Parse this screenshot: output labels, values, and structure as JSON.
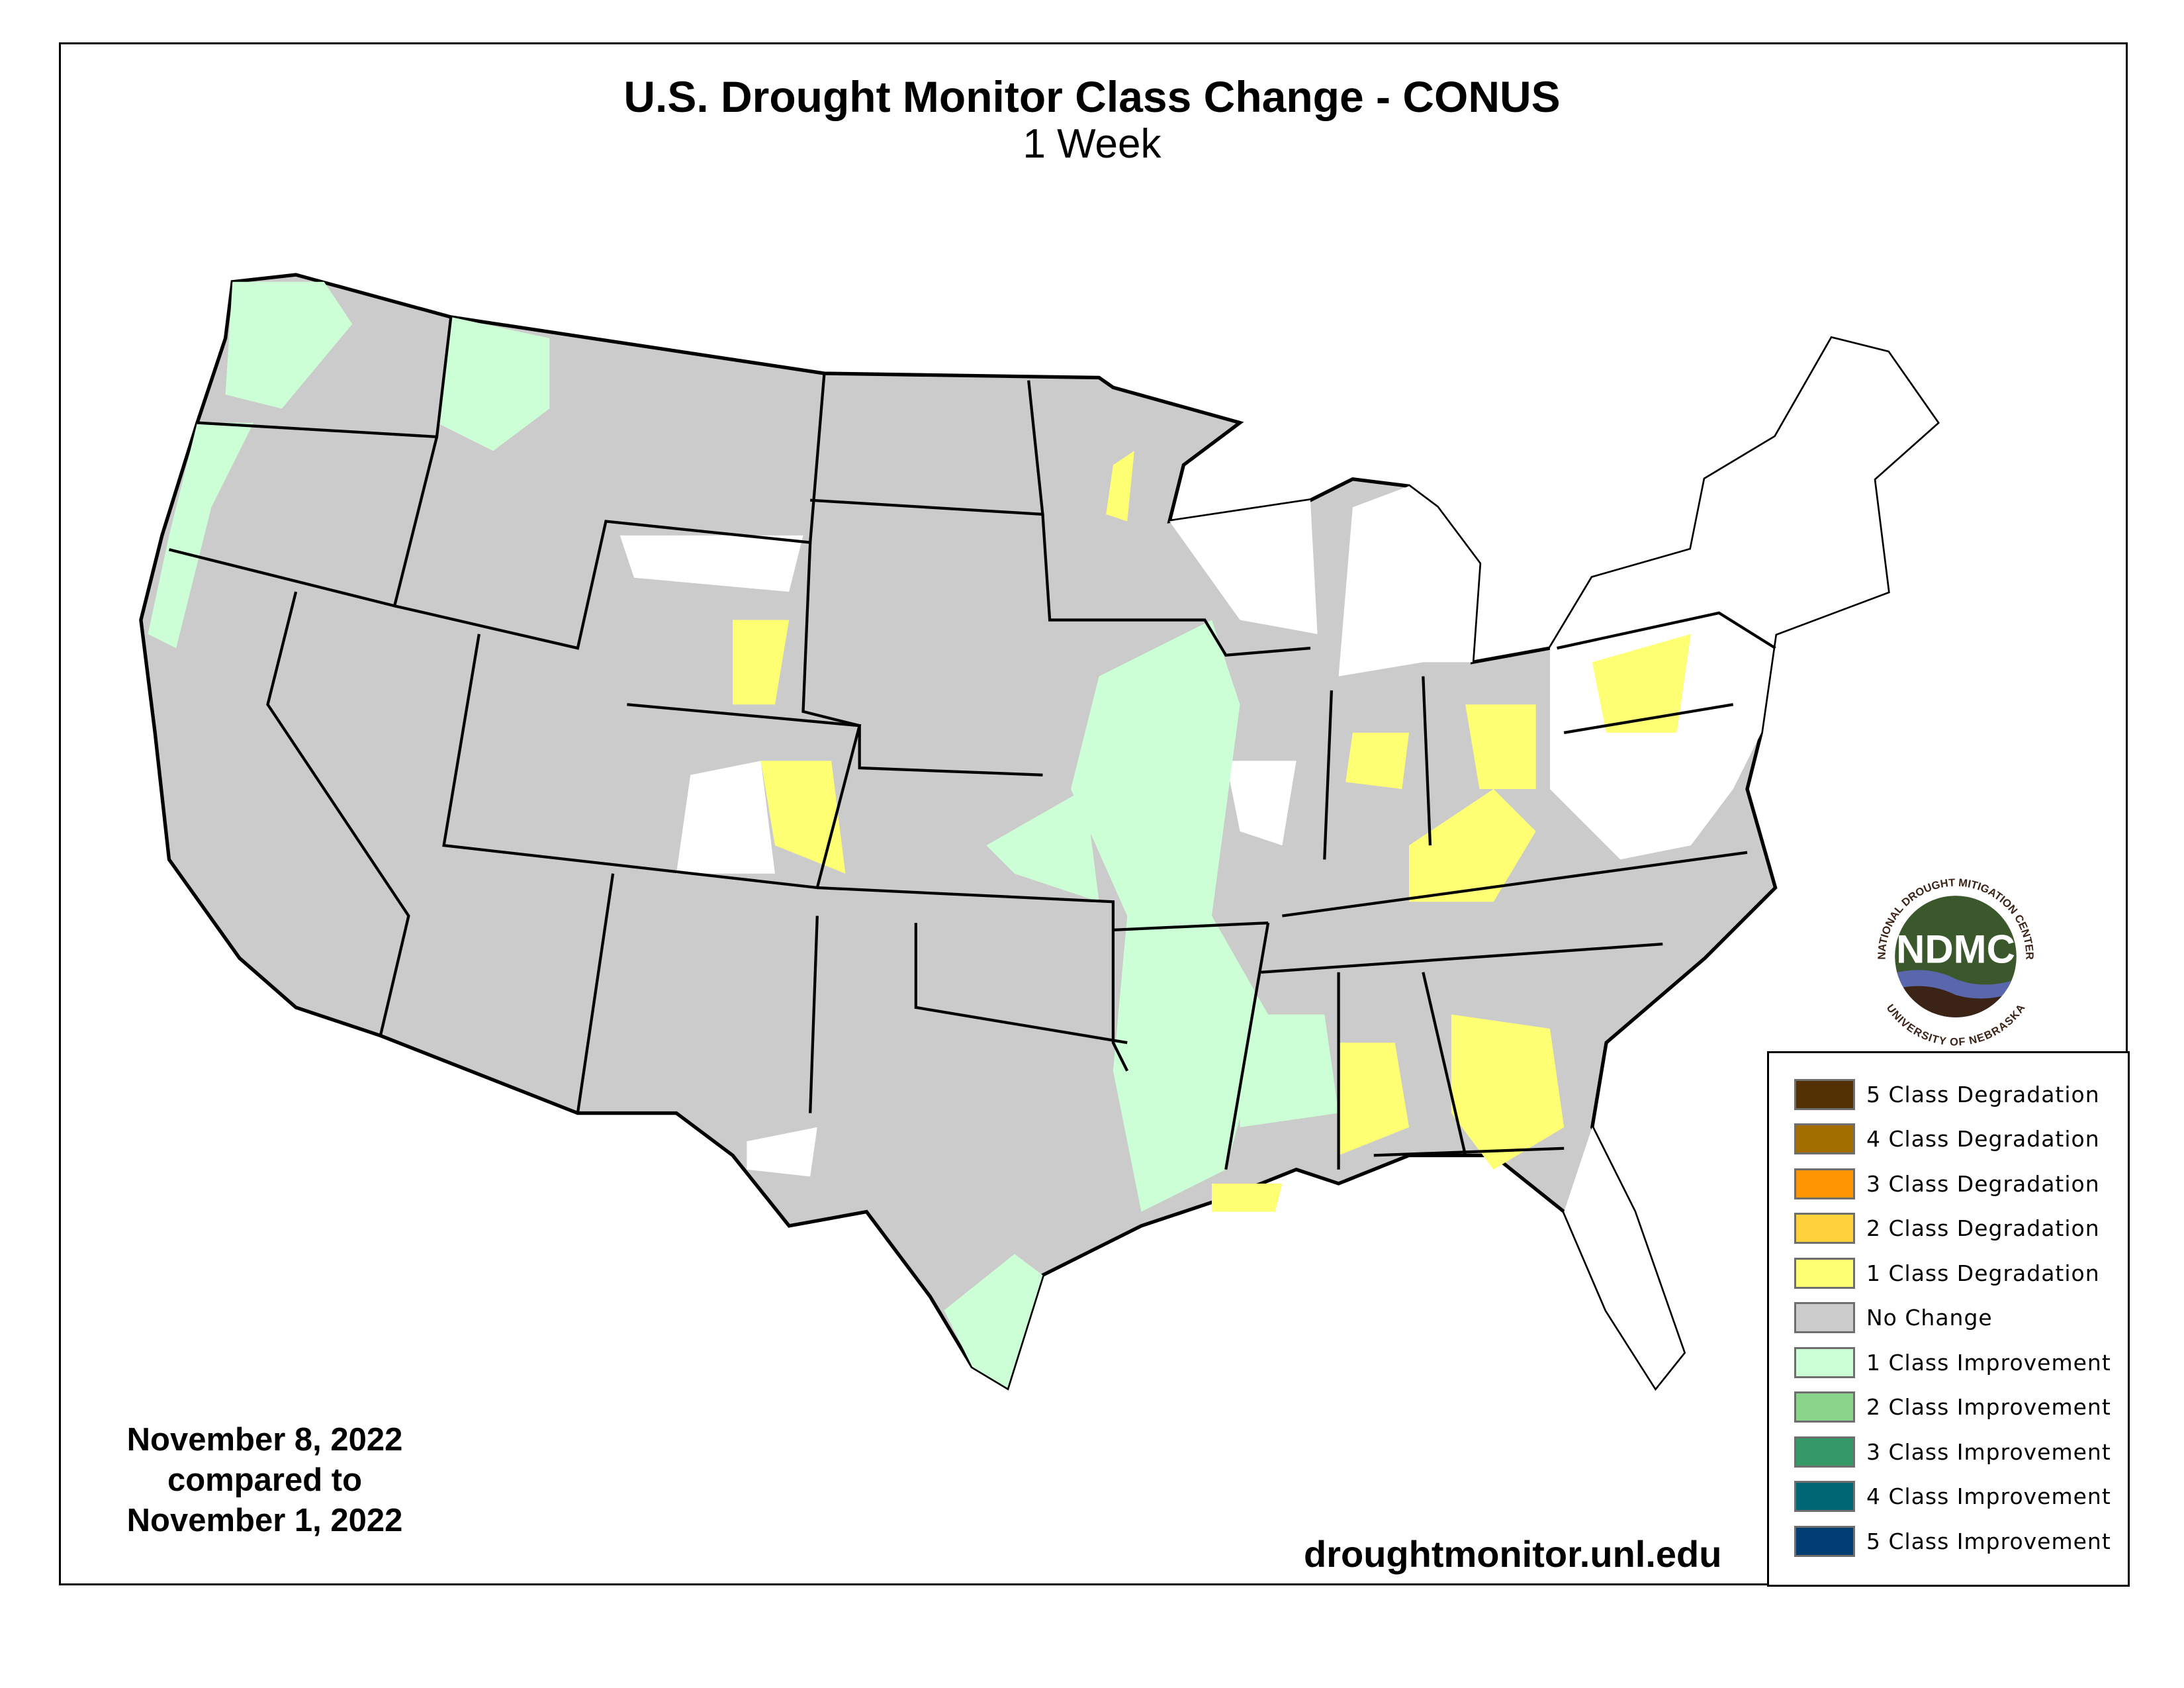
{
  "title": "U.S. Drought Monitor Class Change - CONUS",
  "subtitle": "1 Week",
  "dates": {
    "line1": "November 8, 2022",
    "line2": "compared to",
    "line3": "November 1, 2022"
  },
  "website": "droughtmonitor.unl.edu",
  "logo": {
    "name": "NDMC",
    "ring_top": "NATIONAL DROUGHT MITIGATION CENTER",
    "ring_bottom": "UNIVERSITY OF NEBRASKA"
  },
  "legend": [
    {
      "label": "5 Class Degradation",
      "color": "#543005"
    },
    {
      "label": "4 Class Degradation",
      "color": "#a36e00"
    },
    {
      "label": "3 Class Degradation",
      "color": "#ff9500"
    },
    {
      "label": "2 Class Degradation",
      "color": "#ffd23c"
    },
    {
      "label": "1 Class Degradation",
      "color": "#ffff73"
    },
    {
      "label": "No Change",
      "color": "#cbcbcb"
    },
    {
      "label": "1 Class Improvement",
      "color": "#ccffd6"
    },
    {
      "label": "2 Class Improvement",
      "color": "#8bd48b"
    },
    {
      "label": "3 Class Improvement",
      "color": "#339966"
    },
    {
      "label": "4 Class Improvement",
      "color": "#006673"
    },
    {
      "label": "5 Class Improvement",
      "color": "#003d73"
    }
  ]
}
